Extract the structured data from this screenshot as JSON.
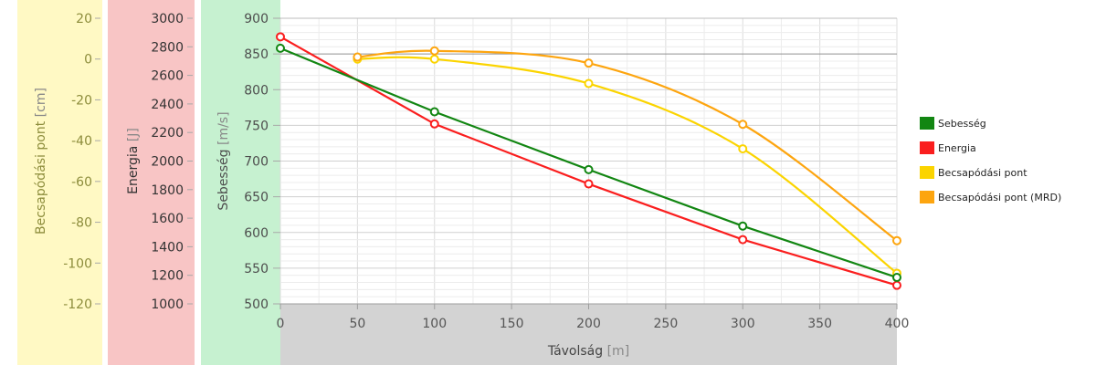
{
  "chart_data": {
    "type": "line",
    "xlabel": {
      "text": "Távolság",
      "unit": "[m]"
    },
    "xlim": [
      0,
      400
    ],
    "x_ticks": [
      "0",
      "50",
      "100",
      "150",
      "200",
      "250",
      "300",
      "350",
      "400"
    ],
    "axes": [
      {
        "id": "becsapodasi",
        "label": "Becsapódási pont",
        "unit": "[cm]",
        "lim": [
          -120,
          20
        ],
        "ticks": [
          "20",
          "0",
          "-20",
          "-40",
          "-60",
          "-80",
          "-100",
          "-120"
        ],
        "band_color": "#fff9c4",
        "text_color": "#8d8d3c"
      },
      {
        "id": "energia",
        "label": "Energia",
        "unit": "[J]",
        "lim": [
          1000,
          3000
        ],
        "ticks": [
          "3000",
          "2800",
          "2600",
          "2400",
          "2200",
          "2000",
          "1800",
          "1600",
          "1400",
          "1200",
          "1000"
        ],
        "band_color": "#f8c5c5",
        "text_color": "#333333"
      },
      {
        "id": "sebesseg",
        "label": "Sebesség",
        "unit": "[m/s]",
        "lim": [
          500,
          900
        ],
        "ticks": [
          "900",
          "850",
          "800",
          "750",
          "700",
          "650",
          "600",
          "550",
          "500"
        ],
        "band_color": "#c6f1d0",
        "text_color": "#4d4d4d"
      }
    ],
    "series": [
      {
        "name": "Sebesség",
        "axis": "sebesseg",
        "color": "#128612",
        "smooth": false,
        "x": [
          0,
          100,
          200,
          300,
          400
        ],
        "y": [
          858,
          769,
          688,
          609,
          537
        ]
      },
      {
        "name": "Energia",
        "axis": "energia",
        "color": "#fa1e1e",
        "smooth": false,
        "x": [
          0,
          100,
          200,
          300,
          400
        ],
        "y": [
          2870,
          2260,
          1840,
          1450,
          1130
        ]
      },
      {
        "name": "Becsapódási pont",
        "axis": "becsapodasi",
        "color": "#fbd400",
        "smooth": true,
        "x": [
          50,
          100,
          200,
          300,
          400
        ],
        "y": [
          0,
          0,
          -12,
          -44,
          -105
        ]
      },
      {
        "name": "Becsapódási pont (MRD)",
        "axis": "becsapodasi",
        "color": "#fda50f",
        "smooth": true,
        "x": [
          50,
          100,
          200,
          300,
          400
        ],
        "y": [
          1,
          4,
          -2,
          -32,
          -89
        ]
      }
    ],
    "grid": true,
    "legend_position": "right"
  }
}
